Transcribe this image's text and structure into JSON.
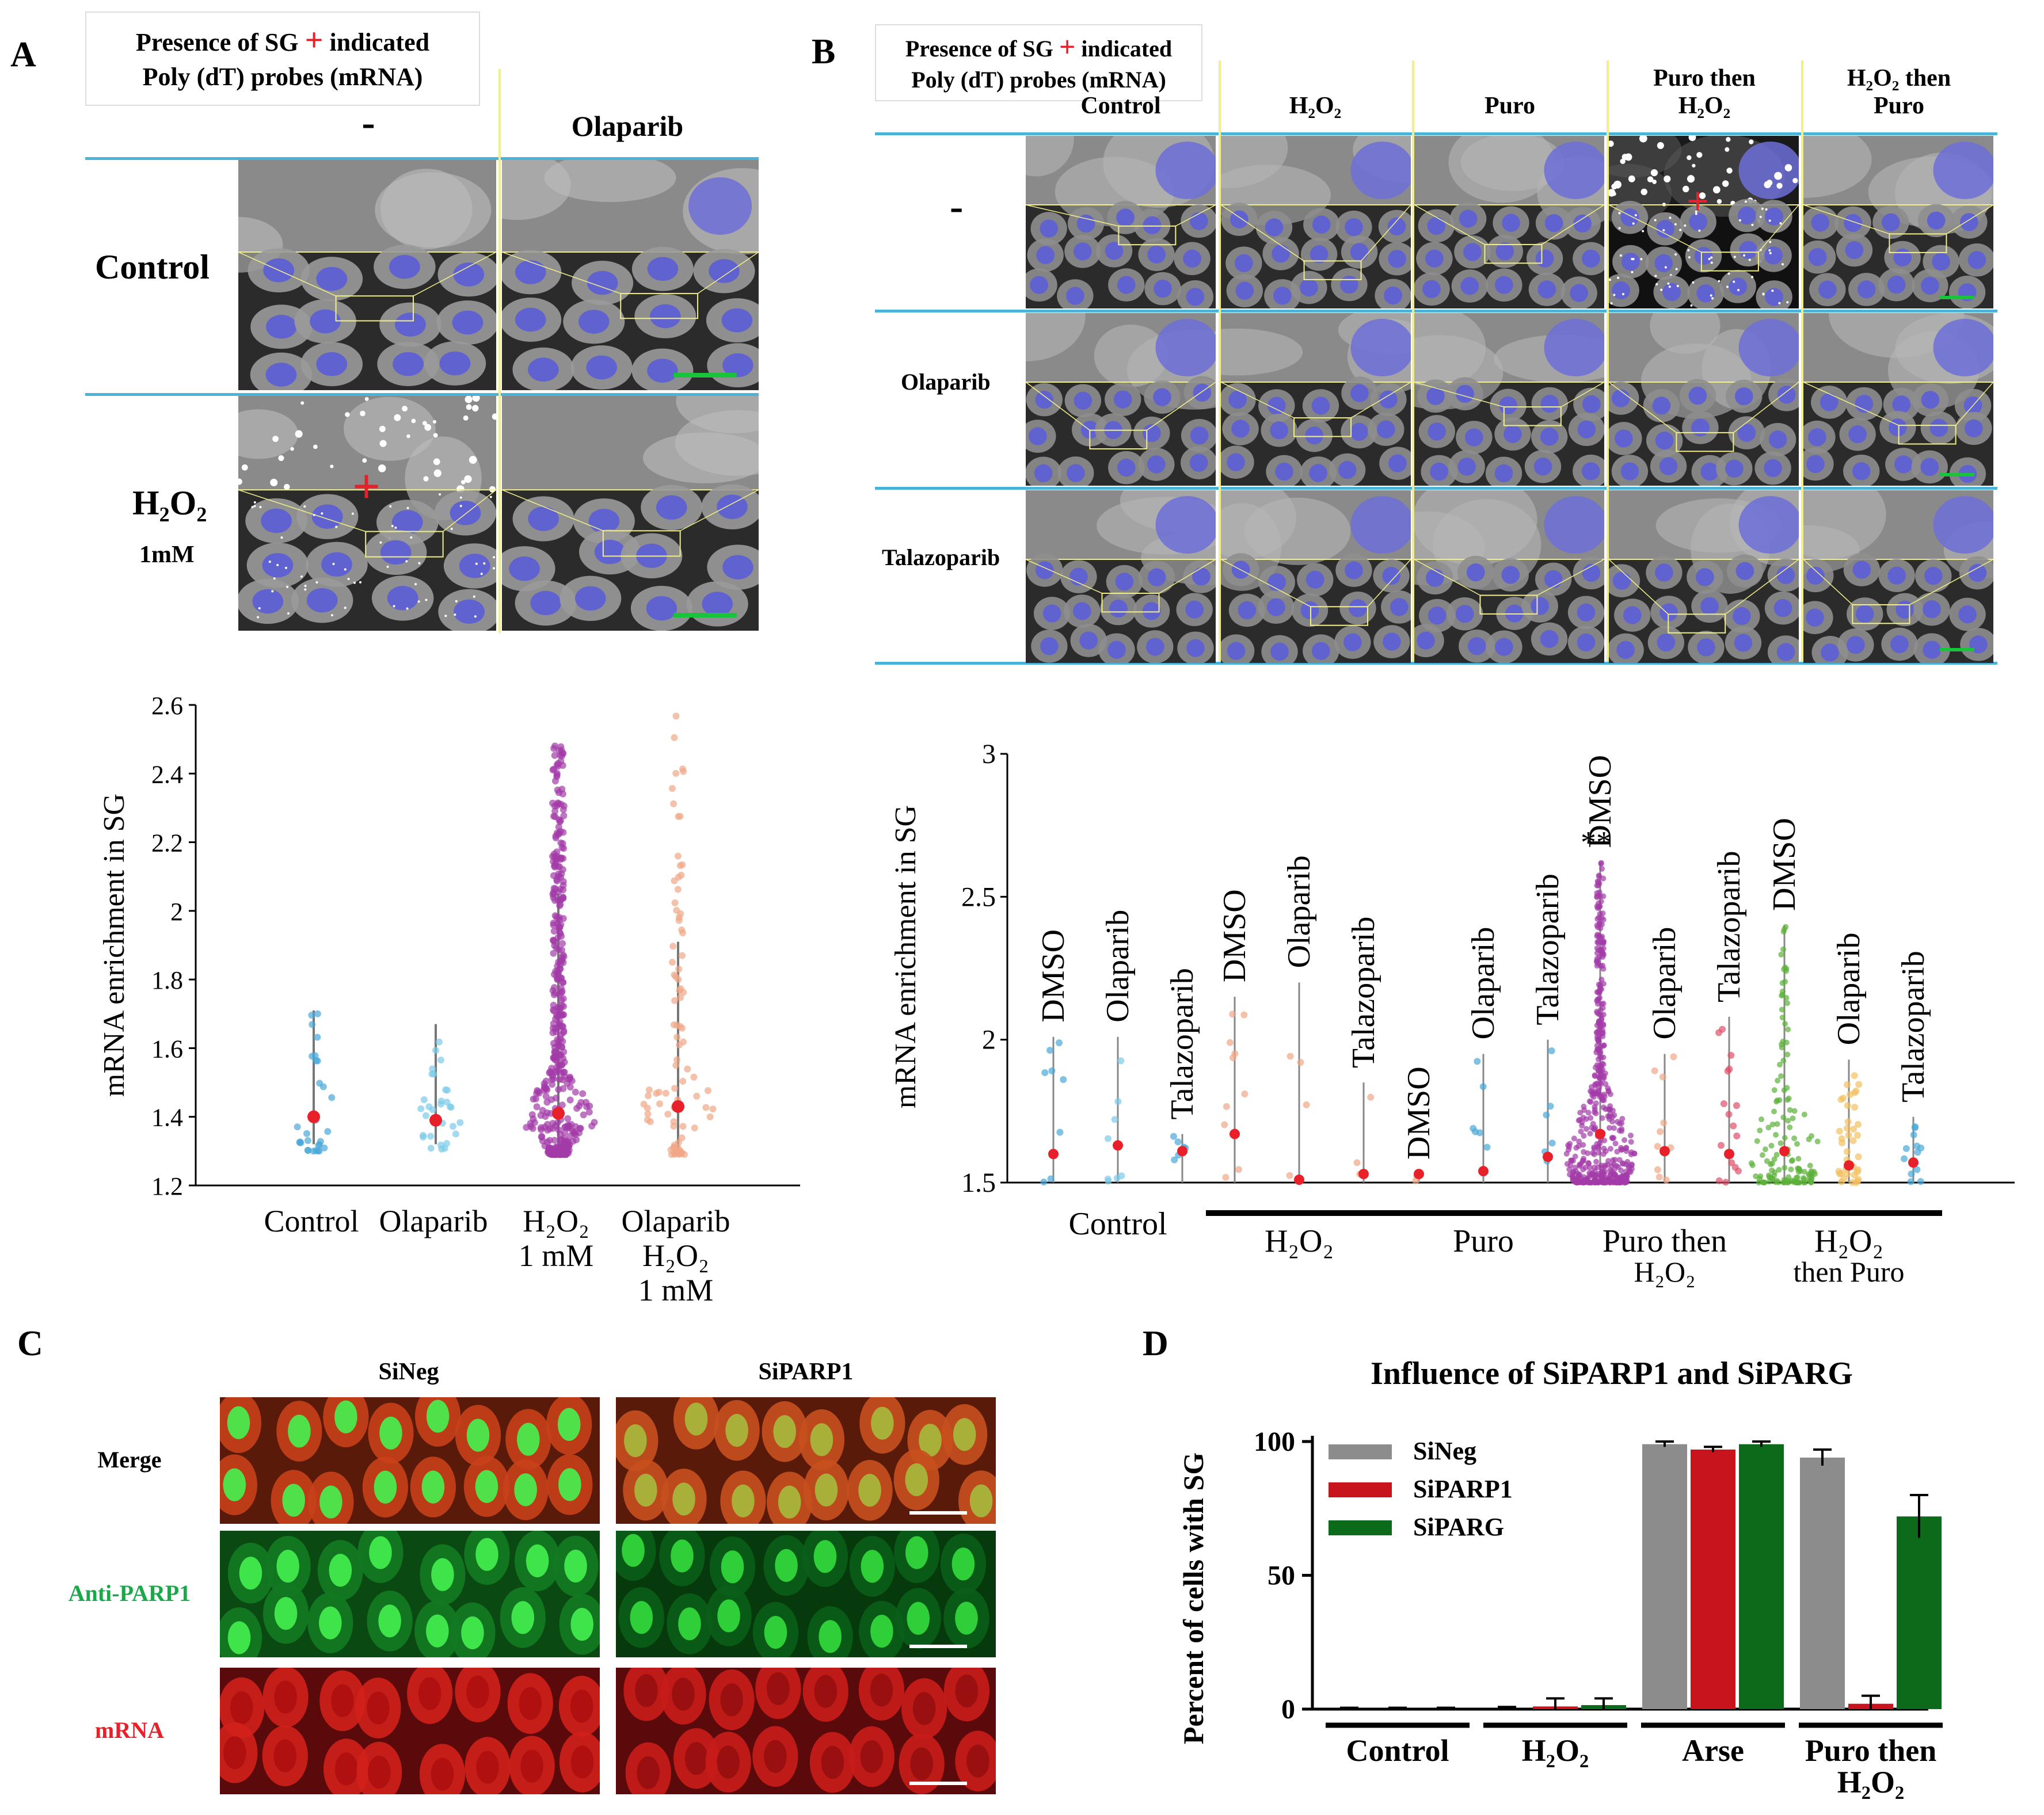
{
  "panel_labels": {
    "A": "A",
    "B": "B",
    "C": "C",
    "D": "D"
  },
  "panel_a": {
    "legend": {
      "line1_prefix": "Presence of SG",
      "plus": "+",
      "line1_suffix": "indicated",
      "line2": "Poly (dT) probes (mRNA)"
    },
    "col_headers": [
      "-",
      "Olaparib"
    ],
    "row_headers": [
      {
        "main": "Control",
        "sub": ""
      },
      {
        "main": "H₂O₂",
        "sub": "1mM"
      }
    ]
  },
  "panel_b": {
    "legend": {
      "line1_prefix": "Presence of SG",
      "plus": "+",
      "line1_suffix": "indicated",
      "line2": "Poly (dT) probes (mRNA)"
    },
    "col_headers": [
      {
        "l1": "",
        "l2": "Control"
      },
      {
        "l1": "",
        "l2": "H₂O₂"
      },
      {
        "l1": "",
        "l2": "Puro"
      },
      {
        "l1": "Puro then",
        "l2": "H₂O₂"
      },
      {
        "l1": "H₂O₂ then",
        "l2": "Puro"
      }
    ],
    "row_headers": [
      "-",
      "Olaparib",
      "Talazoparib"
    ]
  },
  "panel_c": {
    "col_headers": [
      "SiNeg",
      "SiPARP1"
    ],
    "row_headers": [
      {
        "label": "Merge",
        "color": "#000000"
      },
      {
        "label": "Anti-PARP1",
        "color": "#1aa84a"
      },
      {
        "label": "mRNA",
        "color": "#e8202a"
      }
    ]
  },
  "chart_data": [
    {
      "id": "A",
      "type": "scatter",
      "subtype": "violin-dot",
      "title": "",
      "ylabel": "mRNA enrichment  in SG",
      "ylim": [
        1.2,
        2.6
      ],
      "yticks": [
        1.2,
        1.4,
        1.6,
        1.8,
        2,
        2.2,
        2.4,
        2.6
      ],
      "categories": [
        {
          "l1": "Control",
          "l2": "",
          "l3": ""
        },
        {
          "l1": "Olaparib",
          "l2": "",
          "l3": ""
        },
        {
          "l1": "H₂O₂",
          "l2": "1 mM",
          "l3": ""
        },
        {
          "l1": "Olaparib",
          "l2": "H₂O₂",
          "l3": "1 mM"
        }
      ],
      "series": [
        {
          "name": "Control",
          "color": "#4aa8d8",
          "mean": 1.4,
          "whisker": [
            1.32,
            1.71
          ],
          "max": 1.72,
          "n": 30
        },
        {
          "name": "Olaparib",
          "color": "#7ccbe8",
          "mean": 1.39,
          "whisker": [
            1.32,
            1.67
          ],
          "max": 1.68,
          "n": 30
        },
        {
          "name": "H2O2 1 mM",
          "color": "#a33aa8",
          "mean": 1.41,
          "whisker": [
            1.31,
            2.05
          ],
          "max": 2.49,
          "n": 420
        },
        {
          "name": "Olaparib H2O2 1 mM",
          "color": "#f0a888",
          "mean": 1.43,
          "whisker": [
            1.31,
            1.91
          ],
          "max": 2.57,
          "n": 90
        }
      ]
    },
    {
      "id": "B",
      "type": "scatter",
      "subtype": "violin-dot",
      "ylabel": "mRNA enrichment  in SG",
      "ylim": [
        1.5,
        3
      ],
      "yticks": [
        1.5,
        2,
        2.5,
        3
      ],
      "annotation": "**",
      "groups": [
        {
          "l1": "Control",
          "l2": ""
        },
        {
          "l1": "H₂O₂",
          "l2": ""
        },
        {
          "l1": "Puro",
          "l2": ""
        },
        {
          "l1": "Puro then",
          "l2": "H₂O₂"
        },
        {
          "l1": "H₂O₂",
          "l2": "then Puro"
        }
      ],
      "series": [
        {
          "group": 0,
          "name": "DMSO",
          "color": "#4aa8d8",
          "mean": 1.6,
          "top": 2.01,
          "n": 8
        },
        {
          "group": 0,
          "name": "Olaparib",
          "color": "#7ccbe8",
          "mean": 1.63,
          "top": 2.01,
          "n": 8
        },
        {
          "group": 0,
          "name": "Talazoparib",
          "color": "#4aa8d8",
          "mean": 1.61,
          "top": 1.67,
          "n": 6
        },
        {
          "group": 1,
          "name": "DMSO",
          "color": "#f0a888",
          "mean": 1.67,
          "top": 2.15,
          "n": 10
        },
        {
          "group": 1,
          "name": "Olaparib",
          "color": "#f0a888",
          "mean": 1.51,
          "top": 2.2,
          "n": 4
        },
        {
          "group": 1,
          "name": "Talazoparib",
          "color": "#f0a888",
          "mean": 1.53,
          "top": 1.85,
          "n": 4
        },
        {
          "group": 2,
          "name": "DMSO",
          "color": "#f0a888",
          "mean": 1.53,
          "top": 1.53,
          "n": 2
        },
        {
          "group": 2,
          "name": "Olaparib",
          "color": "#4aa8d8",
          "mean": 1.54,
          "top": 1.95,
          "n": 6
        },
        {
          "group": 2,
          "name": "Talazoparib",
          "color": "#4aa8d8",
          "mean": 1.59,
          "top": 2.0,
          "n": 6
        },
        {
          "group": 3,
          "name": "DMSO",
          "color": "#a33aa8",
          "mean": 1.67,
          "top": 2.62,
          "n": 500
        },
        {
          "group": 3,
          "name": "Olaparib",
          "color": "#f0a888",
          "mean": 1.61,
          "top": 1.95,
          "n": 10
        },
        {
          "group": 3,
          "name": "Talazoparib",
          "color": "#e0506a",
          "mean": 1.6,
          "top": 2.08,
          "n": 16
        },
        {
          "group": 4,
          "name": "DMSO",
          "color": "#5cb03a",
          "mean": 1.61,
          "top": 2.4,
          "n": 140
        },
        {
          "group": 4,
          "name": "Olaparib",
          "color": "#f2c060",
          "mean": 1.56,
          "top": 1.93,
          "n": 40
        },
        {
          "group": 4,
          "name": "Talazoparib",
          "color": "#4aa8d8",
          "mean": 1.57,
          "top": 1.73,
          "n": 12
        }
      ]
    },
    {
      "id": "D",
      "type": "bar",
      "title": "Influence of SiPARP1 and SiPARG",
      "ylabel": "Percent of cells with SG",
      "ylim": [
        0,
        100
      ],
      "yticks": [
        0,
        50,
        100
      ],
      "categories": [
        {
          "l1": "Control",
          "l2": ""
        },
        {
          "l1": "H₂O₂",
          "l2": ""
        },
        {
          "l1": "Arse",
          "l2": ""
        },
        {
          "l1": "Puro then",
          "l2": "H₂O₂"
        }
      ],
      "legend": [
        "SiNeg",
        "SiPARP1",
        "SiPARG"
      ],
      "series": [
        {
          "name": "SiNeg",
          "color": "#8c8c8c",
          "values": [
            0,
            0,
            99,
            94
          ],
          "errors": [
            0.5,
            0.8,
            1,
            3
          ]
        },
        {
          "name": "SiPARP1",
          "color": "#c8141c",
          "values": [
            0,
            1,
            97,
            2
          ],
          "errors": [
            0.5,
            3,
            1,
            3
          ]
        },
        {
          "name": "SiPARG",
          "color": "#0b6b1a",
          "values": [
            0,
            1.5,
            99,
            72
          ],
          "errors": [
            0.5,
            2.5,
            1,
            8
          ]
        }
      ]
    }
  ]
}
